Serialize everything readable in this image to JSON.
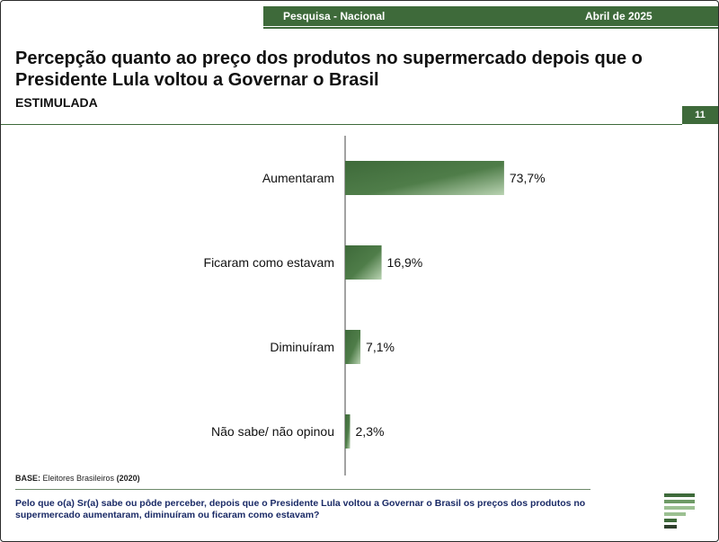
{
  "header": {
    "survey": "Pesquisa - Nacional",
    "date": "Abril de 2025"
  },
  "title": "Percepção quanto ao preço dos produtos no supermercado depois que o Presidente Lula voltou a Governar o Brasil",
  "subtitle": "ESTIMULADA",
  "page_number": "11",
  "chart_data": {
    "type": "bar",
    "orientation": "horizontal",
    "categories": [
      "Aumentaram",
      "Ficaram como estavam",
      "Diminuíram",
      "Não sabe/ não opinou"
    ],
    "values": [
      73.7,
      16.9,
      7.1,
      2.3
    ],
    "value_labels": [
      "73,7%",
      "16,9%",
      "7,1%",
      "2,3%"
    ],
    "xlim": [
      0,
      100
    ],
    "colors": {
      "bar_dark": "#3e6a3a",
      "bar_light": "#b9d3b2"
    }
  },
  "base": {
    "label": "BASE:",
    "text": "Eleitores Brasileiros",
    "year": "(2020)"
  },
  "question": "Pelo que o(a) Sr(a) sabe ou pôde perceber, depois que o Presidente Lula voltou a Governar o Brasil os preços dos produtos no supermercado aumentaram, diminuíram ou ficaram como estavam?"
}
